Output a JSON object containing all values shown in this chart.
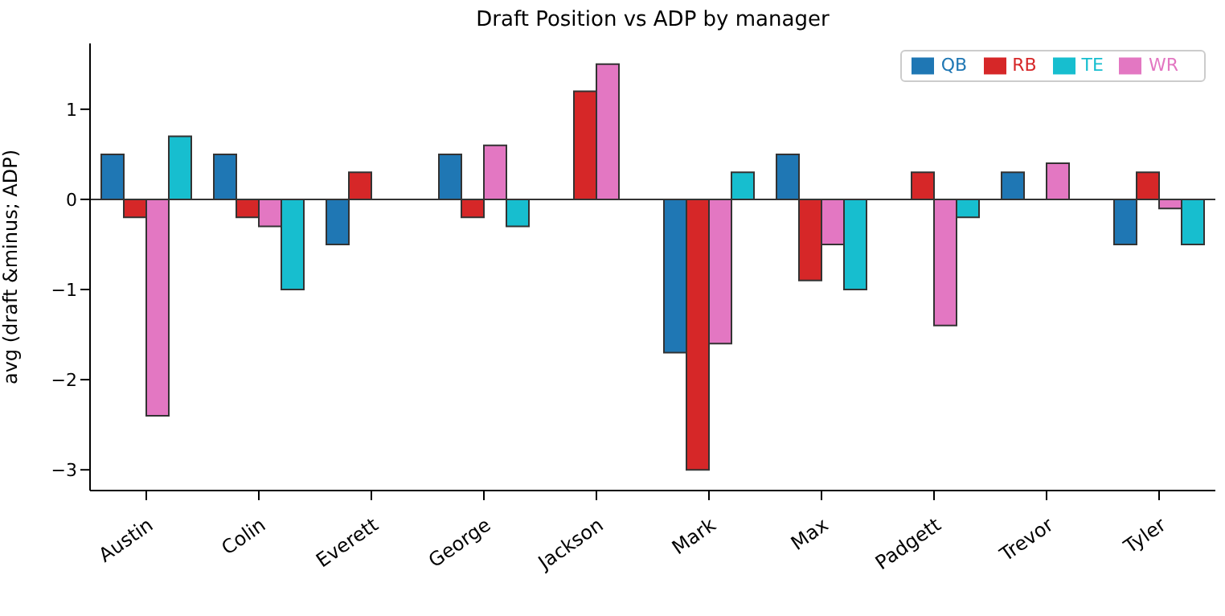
{
  "chart_data": {
    "type": "bar",
    "title": "Draft Position vs ADP by manager",
    "ylabel": "avg (draft &minus; ADP)",
    "categories": [
      "Austin",
      "Colin",
      "Everett",
      "George",
      "Jackson",
      "Mark",
      "Max",
      "Padgett",
      "Trevor",
      "Tyler"
    ],
    "series": [
      {
        "name": "QB",
        "color": "#1f77b4",
        "values": [
          0.5,
          0.5,
          -0.5,
          0.5,
          0,
          -1.7,
          0.5,
          0,
          0.3,
          -0.5
        ]
      },
      {
        "name": "RB",
        "color": "#d62728",
        "values": [
          -0.2,
          -0.2,
          0.3,
          -0.2,
          1.2,
          -3.0,
          -0.9,
          0.3,
          0,
          0.3
        ]
      },
      {
        "name": "WR",
        "color": "#e377c2",
        "values": [
          -2.4,
          -0.3,
          0,
          0.6,
          1.5,
          -1.6,
          -0.5,
          -1.4,
          0.4,
          -0.1
        ]
      },
      {
        "name": "TE",
        "color": "#17becf",
        "values": [
          0.7,
          -1.0,
          0,
          -0.3,
          0,
          0.3,
          -1.0,
          -0.2,
          0,
          -0.5
        ]
      }
    ],
    "ylim": [
      -3.23,
      1.73
    ],
    "yticks": [
      -3,
      -2,
      -1,
      0,
      1
    ],
    "legend": "top right",
    "ref_lines": [
      {
        "axis": "y",
        "value": 0,
        "color": "#333333"
      }
    ]
  }
}
